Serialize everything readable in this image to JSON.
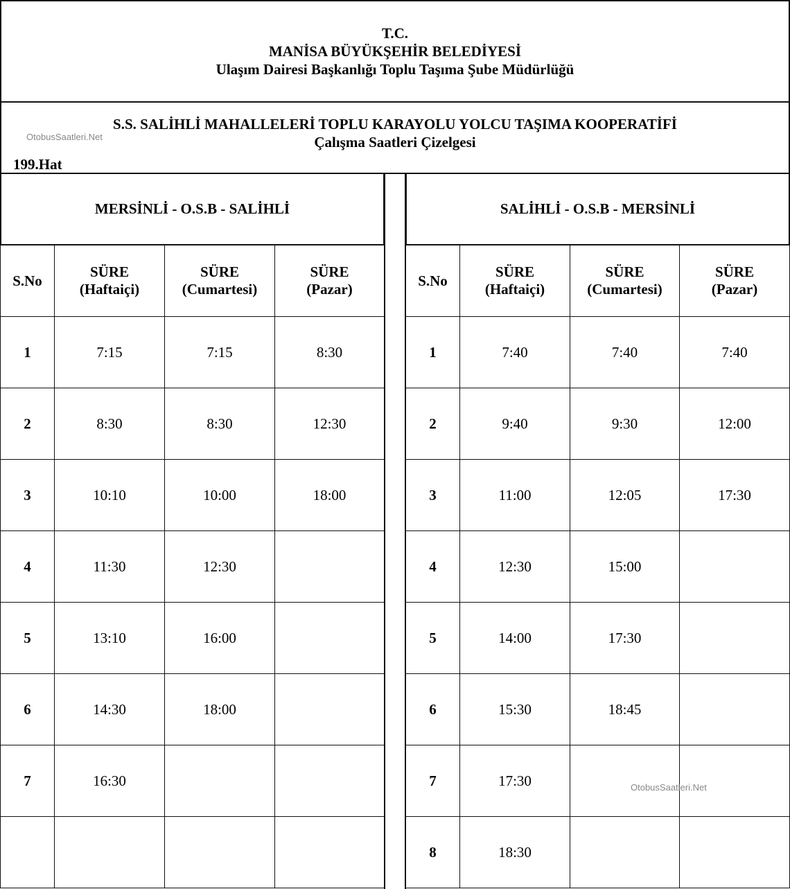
{
  "header": {
    "line1": "T.C.",
    "line2": "MANİSA BÜYÜKŞEHİR BELEDİYESİ",
    "line3": "Ulaşım Dairesi Başkanlığı Toplu Taşıma Şube Müdürlüğü"
  },
  "subheader": {
    "line1": "S.S. SALİHLİ MAHALLELERİ TOPLU KARAYOLU YOLCU TAŞIMA KOOPERATİFİ",
    "line2": "Çalışma Saatleri Çizelgesi",
    "route": "199.Hat"
  },
  "watermark": "OtobusSaatleri.Net",
  "columns": [
    "S.No",
    "SÜRE\n(Haftaiçi)",
    "SÜRE\n(Cumartesi)",
    "SÜRE\n(Pazar)"
  ],
  "tables": [
    {
      "title": "MERSİNLİ - O.S.B - SALİHLİ",
      "rows": [
        [
          "1",
          "7:15",
          "7:15",
          "8:30"
        ],
        [
          "2",
          "8:30",
          "8:30",
          "12:30"
        ],
        [
          "3",
          "10:10",
          "10:00",
          "18:00"
        ],
        [
          "4",
          "11:30",
          "12:30",
          ""
        ],
        [
          "5",
          "13:10",
          "16:00",
          ""
        ],
        [
          "6",
          "14:30",
          "18:00",
          ""
        ],
        [
          "7",
          "16:30",
          "",
          ""
        ],
        [
          "",
          "",
          "",
          ""
        ]
      ]
    },
    {
      "title": "SALİHLİ - O.S.B - MERSİNLİ",
      "rows": [
        [
          "1",
          "7:40",
          "7:40",
          "7:40"
        ],
        [
          "2",
          "9:40",
          "9:30",
          "12:00"
        ],
        [
          "3",
          "11:00",
          "12:05",
          "17:30"
        ],
        [
          "4",
          "12:30",
          "15:00",
          ""
        ],
        [
          "5",
          "14:00",
          "17:30",
          ""
        ],
        [
          "6",
          "15:30",
          "18:45",
          ""
        ],
        [
          "7",
          "17:30",
          "",
          ""
        ],
        [
          "8",
          "18:30",
          "",
          ""
        ]
      ]
    }
  ]
}
